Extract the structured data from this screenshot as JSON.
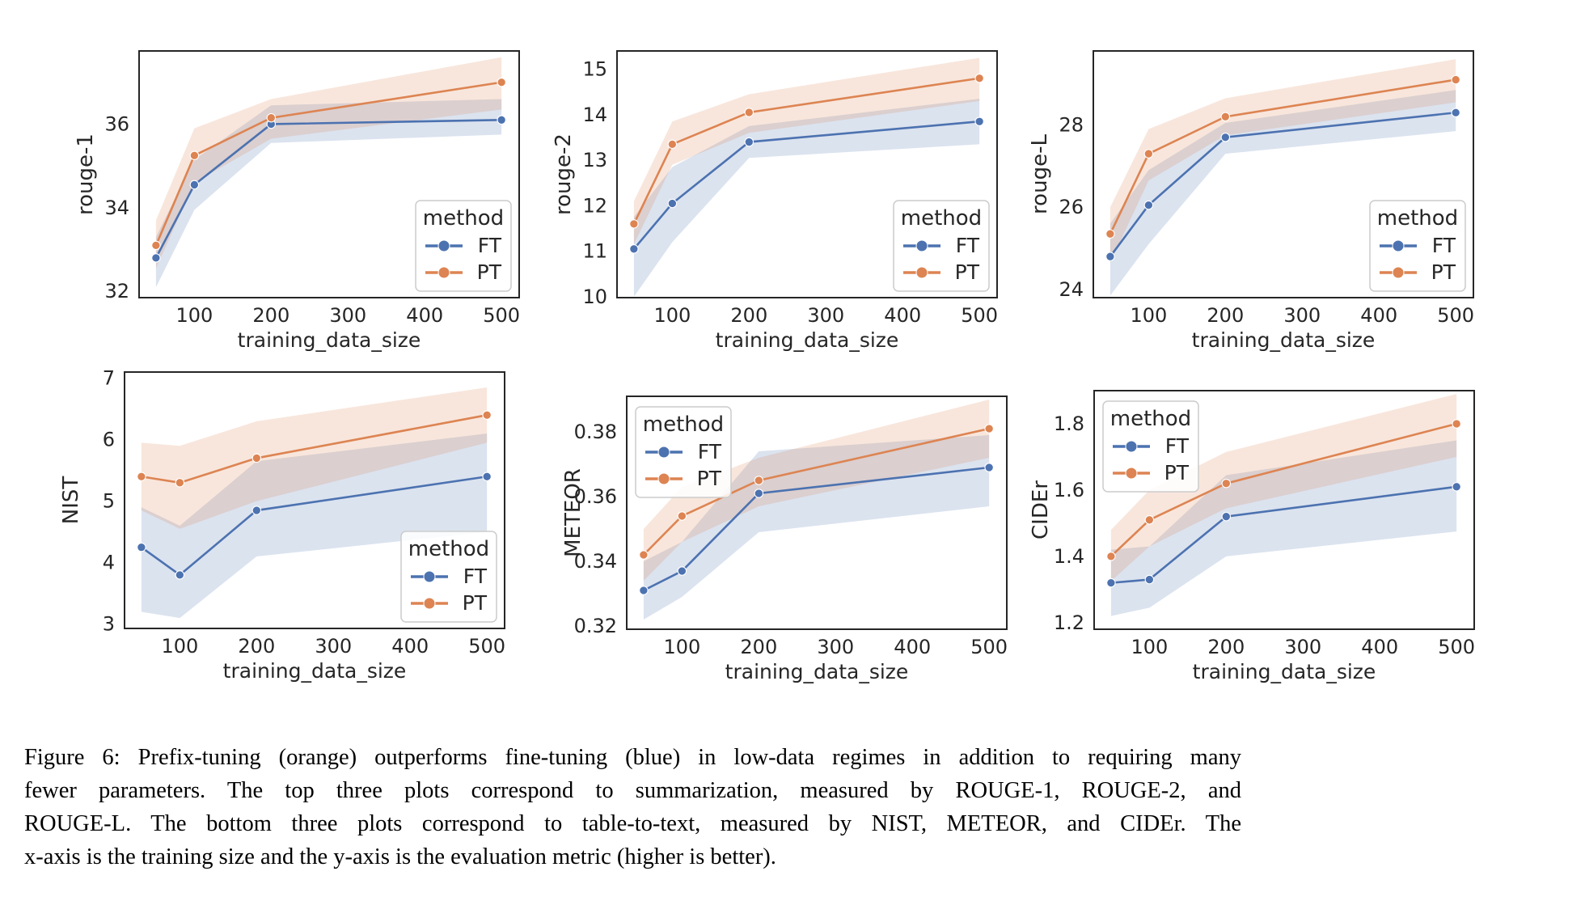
{
  "figure": {
    "caption": {
      "lines": [
        "Figure 6: Prefix-tuning (orange) outperforms fine-tuning (blue) in low-data regimes in addition to requiring many",
        "fewer parameters. The top three plots correspond to summarization, measured by ROUGE-1, ROUGE-2, and",
        "ROUGE-L. The bottom three plots correspond to table-to-text, measured by NIST, METEOR, and CIDEr. The",
        "x-axis is the training size and the y-axis is the evaluation metric (higher is better)."
      ]
    }
  },
  "chart_data": [
    {
      "type": "line",
      "ylabel": "rouge-1",
      "xlabel": "training_data_size",
      "x": [
        50,
        100,
        200,
        500
      ],
      "xticks": [
        100,
        200,
        300,
        400,
        500
      ],
      "xlim": [
        28,
        523
      ],
      "ylim": [
        31.85,
        37.75
      ],
      "yticks": [
        32,
        34,
        36
      ],
      "ytick_labels": [
        "32",
        "34",
        "36"
      ],
      "grid": false,
      "legend": {
        "title": "method",
        "position": "lower-right"
      },
      "series": [
        {
          "name": "FT",
          "color": "#4C72B0",
          "values": [
            32.8,
            34.55,
            36.0,
            36.1
          ],
          "band_low": [
            32.1,
            33.95,
            35.55,
            35.75
          ],
          "band_high": [
            33.3,
            35.15,
            36.45,
            36.6
          ]
        },
        {
          "name": "PT",
          "color": "#DD8452",
          "values": [
            33.1,
            35.25,
            36.15,
            37.0
          ],
          "band_low": [
            32.55,
            34.6,
            35.65,
            36.35
          ],
          "band_high": [
            33.7,
            35.9,
            36.6,
            37.6
          ]
        }
      ]
    },
    {
      "type": "line",
      "ylabel": "rouge-2",
      "xlabel": "training_data_size",
      "x": [
        50,
        100,
        200,
        500
      ],
      "xticks": [
        100,
        200,
        300,
        400,
        500
      ],
      "xlim": [
        28,
        523
      ],
      "ylim": [
        9.98,
        15.4
      ],
      "yticks": [
        10,
        11,
        12,
        13,
        14,
        15
      ],
      "ytick_labels": [
        "10",
        "11",
        "12",
        "13",
        "14",
        "15"
      ],
      "grid": false,
      "legend": {
        "title": "method",
        "position": "lower-right"
      },
      "series": [
        {
          "name": "FT",
          "color": "#4C72B0",
          "values": [
            11.05,
            12.05,
            13.4,
            13.85
          ],
          "band_low": [
            10.0,
            11.2,
            13.05,
            13.35
          ],
          "band_high": [
            11.75,
            12.85,
            13.75,
            14.35
          ]
        },
        {
          "name": "PT",
          "color": "#DD8452",
          "values": [
            11.6,
            13.35,
            14.05,
            14.8
          ],
          "band_low": [
            11.15,
            12.9,
            13.6,
            14.3
          ],
          "band_high": [
            12.1,
            13.85,
            14.45,
            15.25
          ]
        }
      ]
    },
    {
      "type": "line",
      "ylabel": "rouge-L",
      "xlabel": "training_data_size",
      "x": [
        50,
        100,
        200,
        500
      ],
      "xticks": [
        100,
        200,
        300,
        400,
        500
      ],
      "xlim": [
        28,
        523
      ],
      "ylim": [
        23.8,
        29.8
      ],
      "yticks": [
        24,
        26,
        28
      ],
      "ytick_labels": [
        "24",
        "26",
        "28"
      ],
      "grid": false,
      "legend": {
        "title": "method",
        "position": "lower-right"
      },
      "series": [
        {
          "name": "FT",
          "color": "#4C72B0",
          "values": [
            24.8,
            26.05,
            27.7,
            28.3
          ],
          "band_low": [
            23.85,
            25.1,
            27.3,
            27.85
          ],
          "band_high": [
            25.6,
            26.9,
            28.05,
            28.85
          ]
        },
        {
          "name": "PT",
          "color": "#DD8452",
          "values": [
            25.35,
            27.3,
            28.2,
            29.1
          ],
          "band_low": [
            24.65,
            26.65,
            27.75,
            28.55
          ],
          "band_high": [
            26.0,
            27.9,
            28.65,
            29.6
          ]
        }
      ]
    },
    {
      "type": "line",
      "ylabel": "NIST",
      "xlabel": "training_data_size",
      "x": [
        50,
        100,
        200,
        500
      ],
      "xticks": [
        100,
        200,
        300,
        400,
        500
      ],
      "xlim": [
        28,
        523
      ],
      "ylim": [
        2.93,
        7.1
      ],
      "yticks": [
        3,
        4,
        5,
        6,
        7
      ],
      "ytick_labels": [
        "3",
        "4",
        "5",
        "6",
        "7"
      ],
      "grid": false,
      "legend": {
        "title": "method",
        "position": "lower-right"
      },
      "series": [
        {
          "name": "FT",
          "color": "#4C72B0",
          "values": [
            4.25,
            3.8,
            4.85,
            5.4
          ],
          "band_low": [
            3.2,
            3.1,
            4.1,
            4.5
          ],
          "band_high": [
            4.9,
            4.6,
            5.65,
            6.1
          ]
        },
        {
          "name": "PT",
          "color": "#DD8452",
          "values": [
            5.4,
            5.3,
            5.7,
            6.4
          ],
          "band_low": [
            4.85,
            4.55,
            5.0,
            5.95
          ],
          "band_high": [
            5.95,
            5.9,
            6.3,
            6.85
          ]
        }
      ]
    },
    {
      "type": "line",
      "ylabel": "METEOR",
      "xlabel": "training_data_size",
      "x": [
        50,
        100,
        200,
        500
      ],
      "xticks": [
        100,
        200,
        300,
        400,
        500
      ],
      "xlim": [
        28,
        523
      ],
      "ylim": [
        0.319,
        0.391
      ],
      "yticks": [
        0.32,
        0.34,
        0.36,
        0.38
      ],
      "ytick_labels": [
        "0.32",
        "0.34",
        "0.36",
        "0.38"
      ],
      "grid": false,
      "legend": {
        "title": "method",
        "position": "upper-left"
      },
      "series": [
        {
          "name": "FT",
          "color": "#4C72B0",
          "values": [
            0.331,
            0.337,
            0.361,
            0.369
          ],
          "band_low": [
            0.322,
            0.329,
            0.349,
            0.357
          ],
          "band_high": [
            0.34,
            0.346,
            0.374,
            0.379
          ]
        },
        {
          "name": "PT",
          "color": "#DD8452",
          "values": [
            0.342,
            0.354,
            0.365,
            0.381
          ],
          "band_low": [
            0.334,
            0.346,
            0.357,
            0.372
          ],
          "band_high": [
            0.35,
            0.363,
            0.372,
            0.39
          ]
        }
      ]
    },
    {
      "type": "line",
      "ylabel": "CIDEr",
      "xlabel": "training_data_size",
      "x": [
        50,
        100,
        200,
        500
      ],
      "xticks": [
        100,
        200,
        300,
        400,
        500
      ],
      "xlim": [
        28,
        523
      ],
      "ylim": [
        1.18,
        1.9
      ],
      "yticks": [
        1.2,
        1.4,
        1.6,
        1.8
      ],
      "ytick_labels": [
        "1.2",
        "1.4",
        "1.6",
        "1.8"
      ],
      "grid": false,
      "legend": {
        "title": "method",
        "position": "upper-left"
      },
      "series": [
        {
          "name": "FT",
          "color": "#4C72B0",
          "values": [
            1.32,
            1.33,
            1.52,
            1.61
          ],
          "band_low": [
            1.22,
            1.245,
            1.4,
            1.475
          ],
          "band_high": [
            1.42,
            1.43,
            1.645,
            1.75
          ]
        },
        {
          "name": "PT",
          "color": "#DD8452",
          "values": [
            1.4,
            1.51,
            1.62,
            1.8
          ],
          "band_low": [
            1.325,
            1.43,
            1.545,
            1.7
          ],
          "band_high": [
            1.48,
            1.6,
            1.715,
            1.89
          ]
        }
      ]
    }
  ]
}
